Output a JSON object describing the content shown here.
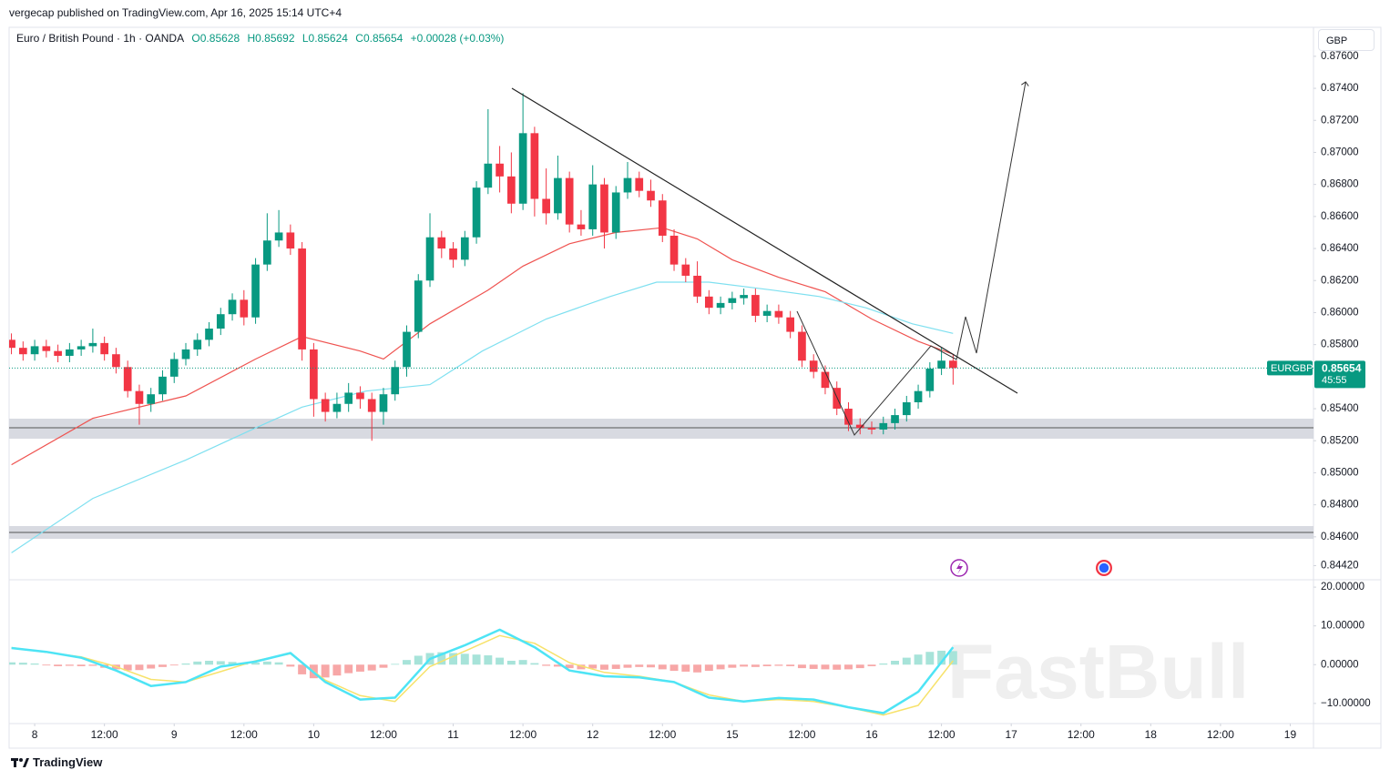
{
  "header": {
    "published": "vergecap published on TradingView.com, Apr 16, 2025 15:14 UTC+4"
  },
  "currency": "GBP",
  "watermark": "FastBull",
  "footer": "TradingView",
  "chart_data": [
    {
      "type": "candlestick",
      "legend": [
        "Euro / British Pound · 1h · OANDA",
        "O0.85628",
        "H0.85692",
        "L0.85624",
        "C0.85654",
        "+0.00028 (+0.03%)"
      ],
      "symbol": "EURGBP",
      "countdown": "45:55",
      "up_color": "#089981",
      "down_color": "#f23645",
      "x": [
        -4,
        -2,
        0,
        2,
        4,
        6,
        8,
        10,
        12,
        14,
        16,
        18,
        20,
        22,
        24,
        26,
        28,
        30,
        32,
        34,
        36,
        38,
        40,
        42,
        44,
        46,
        48,
        50,
        52,
        54,
        56,
        58,
        60,
        62,
        64,
        66,
        68,
        70,
        72,
        74,
        76,
        78,
        80,
        82,
        84,
        86,
        88,
        90,
        92,
        94,
        96,
        98,
        100,
        102,
        104,
        106,
        108,
        110,
        112,
        114,
        116,
        118,
        120,
        122,
        124,
        126,
        128,
        130,
        132,
        134,
        136,
        138,
        140,
        142,
        144,
        146,
        148,
        150,
        152,
        154,
        156,
        158
      ],
      "open": [
        0.8583,
        0.8578,
        0.8574,
        0.8579,
        0.8576,
        0.8573,
        0.8577,
        0.8579,
        0.8581,
        0.8574,
        0.8566,
        0.8551,
        0.8543,
        0.8549,
        0.856,
        0.8571,
        0.8577,
        0.8583,
        0.859,
        0.8599,
        0.8608,
        0.8597,
        0.863,
        0.8645,
        0.865,
        0.864,
        0.8577,
        0.8546,
        0.8538,
        0.8543,
        0.855,
        0.8546,
        0.8538,
        0.8549,
        0.8566,
        0.8588,
        0.862,
        0.8647,
        0.864,
        0.8633,
        0.8647,
        0.8678,
        0.8693,
        0.8685,
        0.8668,
        0.8712,
        0.8671,
        0.8662,
        0.8684,
        0.8655,
        0.8652,
        0.868,
        0.865,
        0.8675,
        0.8684,
        0.8676,
        0.867,
        0.8648,
        0.863,
        0.8623,
        0.861,
        0.8603,
        0.8606,
        0.8609,
        0.8611,
        0.8598,
        0.8601,
        0.8597,
        0.8588,
        0.857,
        0.8563,
        0.8553,
        0.854,
        0.853,
        0.8528,
        0.8527,
        0.8531,
        0.8536,
        0.8544,
        0.8551,
        0.8565,
        0.857
      ],
      "high": [
        0.8587,
        0.8582,
        0.8583,
        0.8583,
        0.858,
        0.8581,
        0.8583,
        0.859,
        0.8585,
        0.8578,
        0.857,
        0.8555,
        0.8553,
        0.8564,
        0.8575,
        0.8581,
        0.8587,
        0.8594,
        0.8603,
        0.8612,
        0.8614,
        0.8634,
        0.8662,
        0.8664,
        0.8655,
        0.8644,
        0.8581,
        0.855,
        0.855,
        0.8556,
        0.8554,
        0.855,
        0.8553,
        0.857,
        0.8592,
        0.8624,
        0.8662,
        0.8651,
        0.8644,
        0.8651,
        0.8682,
        0.8727,
        0.8704,
        0.87,
        0.8737,
        0.8716,
        0.869,
        0.8698,
        0.8688,
        0.8664,
        0.8692,
        0.8684,
        0.8679,
        0.8694,
        0.8688,
        0.8683,
        0.8674,
        0.8652,
        0.8634,
        0.8632,
        0.8614,
        0.861,
        0.8613,
        0.8615,
        0.8615,
        0.8605,
        0.8605,
        0.8601,
        0.8592,
        0.8574,
        0.8567,
        0.8557,
        0.8544,
        0.8534,
        0.8532,
        0.8535,
        0.854,
        0.8548,
        0.8555,
        0.8569,
        0.8578,
        0.8574
      ],
      "low": [
        0.8574,
        0.857,
        0.857,
        0.8572,
        0.8569,
        0.8569,
        0.8573,
        0.8575,
        0.857,
        0.8562,
        0.8547,
        0.853,
        0.8538,
        0.8545,
        0.8556,
        0.8567,
        0.8573,
        0.8579,
        0.8586,
        0.8595,
        0.8592,
        0.8593,
        0.8626,
        0.8641,
        0.8636,
        0.857,
        0.8535,
        0.8532,
        0.8534,
        0.8538,
        0.854,
        0.852,
        0.853,
        0.8545,
        0.856,
        0.8584,
        0.8616,
        0.8634,
        0.8628,
        0.8629,
        0.8643,
        0.8674,
        0.8675,
        0.8662,
        0.8664,
        0.866,
        0.8655,
        0.8658,
        0.865,
        0.8648,
        0.8648,
        0.864,
        0.8646,
        0.8671,
        0.8672,
        0.8666,
        0.8644,
        0.8626,
        0.8619,
        0.8606,
        0.8599,
        0.8599,
        0.8602,
        0.8605,
        0.8594,
        0.8594,
        0.8593,
        0.8584,
        0.8566,
        0.8559,
        0.8549,
        0.8536,
        0.8526,
        0.8524,
        0.8524,
        0.8524,
        0.8527,
        0.8532,
        0.854,
        0.8547,
        0.8561,
        0.8555
      ],
      "close": [
        0.8578,
        0.8574,
        0.8579,
        0.8576,
        0.8573,
        0.8577,
        0.8579,
        0.8581,
        0.8574,
        0.8566,
        0.8551,
        0.8543,
        0.8549,
        0.856,
        0.8571,
        0.8577,
        0.8583,
        0.859,
        0.8599,
        0.8608,
        0.8597,
        0.863,
        0.8645,
        0.865,
        0.864,
        0.8577,
        0.8546,
        0.8538,
        0.8543,
        0.855,
        0.8546,
        0.8538,
        0.8549,
        0.8566,
        0.8588,
        0.862,
        0.8647,
        0.864,
        0.8633,
        0.8647,
        0.8678,
        0.8693,
        0.8685,
        0.8668,
        0.8712,
        0.8671,
        0.8662,
        0.8684,
        0.8655,
        0.8652,
        0.868,
        0.865,
        0.8675,
        0.8684,
        0.8676,
        0.867,
        0.8648,
        0.863,
        0.8623,
        0.861,
        0.8603,
        0.8606,
        0.8609,
        0.8611,
        0.8598,
        0.8601,
        0.8597,
        0.8588,
        0.857,
        0.8563,
        0.8553,
        0.854,
        0.853,
        0.8528,
        0.8527,
        0.8531,
        0.8536,
        0.8544,
        0.8551,
        0.8565,
        0.857,
        0.85654
      ],
      "lines": [
        {
          "color": "#ef5350",
          "x": [
            -4,
            10,
            26,
            38,
            46,
            56,
            60,
            68,
            78,
            84,
            92,
            100,
            108,
            114,
            120,
            128,
            136,
            144,
            152,
            158
          ],
          "values": [
            0.8505,
            0.8534,
            0.8548,
            0.8571,
            0.8585,
            0.8576,
            0.8571,
            0.8593,
            0.8614,
            0.8629,
            0.8643,
            0.865,
            0.8653,
            0.8646,
            0.8633,
            0.8622,
            0.8613,
            0.8596,
            0.8582,
            0.8574
          ]
        },
        {
          "color": "#7fe0f0",
          "x": [
            -4,
            10,
            26,
            38,
            46,
            57,
            68,
            77,
            88,
            99,
            107,
            116,
            127,
            135,
            143,
            151,
            158
          ],
          "values": [
            0.845,
            0.8484,
            0.8508,
            0.8528,
            0.8541,
            0.8551,
            0.8555,
            0.8576,
            0.8596,
            0.861,
            0.8619,
            0.8619,
            0.8614,
            0.861,
            0.8603,
            0.8593,
            0.8587
          ]
        }
      ],
      "xlim": [
        -4.4,
        220
      ],
      "ylim": [
        0.84332,
        0.87781
      ],
      "yticks": [
        {
          "value": 0.876,
          "label": "0.87600"
        },
        {
          "value": 0.874,
          "label": "0.87400"
        },
        {
          "value": 0.872,
          "label": "0.87200"
        },
        {
          "value": 0.87,
          "label": "0.87000"
        },
        {
          "value": 0.868,
          "label": "0.86800"
        },
        {
          "value": 0.866,
          "label": "0.86600"
        },
        {
          "value": 0.864,
          "label": "0.86400"
        },
        {
          "value": 0.862,
          "label": "0.86200"
        },
        {
          "value": 0.86,
          "label": "0.86000"
        },
        {
          "value": 0.858,
          "label": "0.85800"
        },
        {
          "value": 0.854,
          "label": "0.85400"
        },
        {
          "value": 0.852,
          "label": "0.85200"
        },
        {
          "value": 0.85,
          "label": "0.85000"
        },
        {
          "value": 0.848,
          "label": "0.84800"
        },
        {
          "value": 0.846,
          "label": "0.84600"
        },
        {
          "value": 0.8442,
          "label": "0.84420"
        }
      ],
      "grid": false
    },
    {
      "type": "line",
      "x": [
        -4,
        2,
        8,
        14,
        20,
        26,
        32,
        38,
        44,
        50,
        56,
        62,
        68,
        74,
        80,
        86,
        92,
        98,
        104,
        110,
        116,
        122,
        128,
        134,
        140,
        146,
        152,
        158
      ],
      "series": [
        {
          "color": "#f7e26b",
          "values": [
            4.4,
            3.2,
            2.0,
            -0.5,
            -3.8,
            -4.5,
            -1.8,
            1.0,
            2.8,
            -4.0,
            -8.0,
            -9.5,
            -0.5,
            3.5,
            7.5,
            5.5,
            0.5,
            -2.0,
            -3.0,
            -4.5,
            -7.8,
            -9.5,
            -9.0,
            -9.5,
            -11.0,
            -13.0,
            -10.5,
            1.0
          ]
        },
        {
          "color": "#4ee4f5",
          "values": [
            4.3,
            3.3,
            1.8,
            -1.5,
            -5.5,
            -4.5,
            -0.5,
            0.8,
            3.0,
            -4.5,
            -9.0,
            -8.5,
            1.5,
            5.0,
            9.0,
            4.5,
            -1.5,
            -3.0,
            -3.3,
            -4.5,
            -8.5,
            -9.5,
            -8.6,
            -9.0,
            -11.0,
            -12.5,
            -7.0,
            4.5
          ]
        }
      ],
      "histogram": {
        "up_color": "#a7e3d9",
        "down_color": "#f7a7a7",
        "values": [
          0.6,
          0.5,
          0.3,
          -0.2,
          -0.4,
          -0.3,
          -0.4,
          -0.3,
          -0.8,
          -1.2,
          -1.5,
          -1.4,
          -1.0,
          -0.6,
          -0.2,
          0.3,
          0.8,
          1.0,
          0.9,
          0.7,
          0.4,
          0.5,
          0.8,
          0.6,
          -0.5,
          -2.5,
          -3.5,
          -3.3,
          -2.8,
          -2.2,
          -1.8,
          -1.5,
          -0.8,
          0.2,
          1.2,
          2.3,
          3.0,
          3.2,
          3.0,
          2.8,
          2.6,
          2.4,
          1.8,
          1.0,
          1.2,
          0.4,
          -0.3,
          -0.5,
          -0.9,
          -1.2,
          -1.0,
          -1.3,
          -1.1,
          -0.8,
          -0.6,
          -0.7,
          -1.2,
          -1.6,
          -1.8,
          -2.0,
          -1.6,
          -1.2,
          -0.8,
          -0.5,
          -0.6,
          -0.4,
          -0.3,
          -0.4,
          -0.9,
          -1.1,
          -1.2,
          -1.3,
          -1.2,
          -0.9,
          -0.4,
          0.3,
          1.0,
          1.8,
          2.6,
          3.3,
          3.6,
          3.5
        ]
      },
      "ylim": [
        -15.2,
        21.9
      ],
      "yticks": [
        {
          "value": 20,
          "label": "20.00000"
        },
        {
          "value": 10,
          "label": "10.00000"
        },
        {
          "value": 0,
          "label": "0.00000"
        },
        {
          "value": -10,
          "label": "−10.00000"
        }
      ],
      "xticks": [
        {
          "value": 0,
          "label": "8"
        },
        {
          "value": 12,
          "label": "12:00"
        },
        {
          "value": 24,
          "label": "9"
        },
        {
          "value": 36,
          "label": "12:00"
        },
        {
          "value": 48,
          "label": "10"
        },
        {
          "value": 60,
          "label": "12:00"
        },
        {
          "value": 72,
          "label": "11"
        },
        {
          "value": 84,
          "label": "12:00"
        },
        {
          "value": 96,
          "label": "12"
        },
        {
          "value": 108,
          "label": "12:00"
        },
        {
          "value": 120,
          "label": "15"
        },
        {
          "value": 132,
          "label": "12:00"
        },
        {
          "value": 144,
          "label": "16"
        },
        {
          "value": 156,
          "label": "12:00"
        },
        {
          "value": 168,
          "label": "17"
        },
        {
          "value": 180,
          "label": "12:00"
        },
        {
          "value": 192,
          "label": "18"
        },
        {
          "value": 204,
          "label": "12:00"
        },
        {
          "value": 216,
          "label": "19"
        }
      ]
    }
  ]
}
